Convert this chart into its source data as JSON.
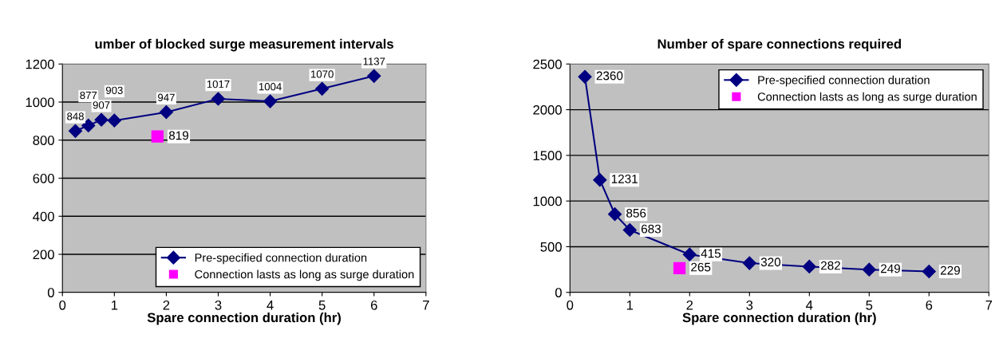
{
  "chart_data": [
    {
      "type": "line",
      "title": "umber of blocked surge measurement intervals",
      "xlabel": "Spare connection duration (hr)",
      "xlim": [
        0,
        7
      ],
      "xticks": [
        0,
        1,
        2,
        3,
        4,
        5,
        6,
        7
      ],
      "ylim": [
        0,
        1200
      ],
      "yticks": [
        0,
        200,
        400,
        600,
        800,
        1000,
        1200
      ],
      "grid": "y",
      "legend": "bottom right",
      "data_labels": true,
      "series": [
        {
          "name": "Pre-specified connection duration",
          "color": "#000080",
          "marker": "diamond",
          "x": [
            0.25,
            0.5,
            0.75,
            1,
            2,
            3,
            4,
            5,
            6
          ],
          "values": [
            848,
            877,
            907,
            903,
            947,
            1017,
            1004,
            1070,
            1137
          ]
        },
        {
          "name": "Connection lasts as long as surge duration",
          "type": "scatter",
          "color": "#ff00ff",
          "marker": "square",
          "x": [
            1.83
          ],
          "values": [
            819
          ]
        }
      ]
    },
    {
      "type": "line",
      "title": "Number of spare connections required",
      "xlabel": "Spare connection duration (hr)",
      "xlim": [
        0,
        7
      ],
      "xticks": [
        0,
        1,
        2,
        3,
        4,
        5,
        6,
        7
      ],
      "ylim": [
        0,
        2500
      ],
      "yticks": [
        0,
        500,
        1000,
        1500,
        2000,
        2500
      ],
      "grid": "y",
      "legend": "top right",
      "data_labels": true,
      "series": [
        {
          "name": "Pre-specified connection duration",
          "color": "#000080",
          "marker": "diamond",
          "x": [
            0.25,
            0.5,
            0.75,
            1,
            2,
            3,
            4,
            5,
            6
          ],
          "values": [
            2360,
            1231,
            856,
            683,
            415,
            320,
            282,
            249,
            229
          ]
        },
        {
          "name": "Connection lasts as long as surge duration",
          "type": "scatter",
          "color": "#ff00ff",
          "marker": "square",
          "x": [
            1.83
          ],
          "values": [
            265
          ]
        }
      ]
    }
  ]
}
